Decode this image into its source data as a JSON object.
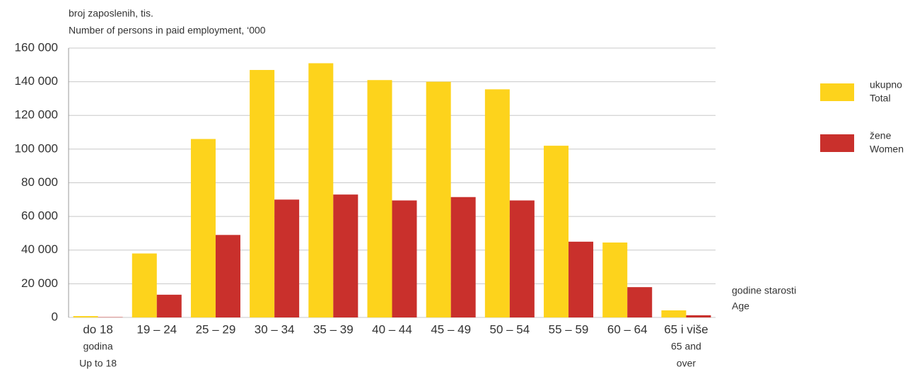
{
  "chart_data": {
    "type": "bar",
    "ylabel": [
      "broj zaposlenih, tis.",
      "Number of persons in paid employment, ‘000"
    ],
    "xlabel": [
      "godine starosti",
      "Age"
    ],
    "categories": [
      [
        "do 18",
        "godina",
        "Up to 18"
      ],
      [
        "19 – 24"
      ],
      [
        "25 – 29"
      ],
      [
        "30 – 34"
      ],
      [
        "35 – 39"
      ],
      [
        "40 – 44"
      ],
      [
        "45 – 49"
      ],
      [
        "50 – 54"
      ],
      [
        "55 – 59"
      ],
      [
        "60 – 64"
      ],
      [
        "65 i više",
        "65 and",
        "over"
      ]
    ],
    "series": [
      {
        "name": "ukupno",
        "name_en": "Total",
        "color": "#fdd31c",
        "values": [
          800,
          38000,
          106000,
          147000,
          151000,
          141000,
          140000,
          135500,
          102000,
          44500,
          4200
        ]
      },
      {
        "name": "žene",
        "name_en": "Women",
        "color": "#c9302c",
        "values": [
          200,
          13500,
          49000,
          70000,
          73000,
          69500,
          71500,
          69500,
          45000,
          18000,
          1300
        ]
      }
    ],
    "ylim": [
      0,
      160000
    ],
    "yticks": [
      0,
      {
        "value": 20000,
        "label": "20 000"
      },
      {
        "value": 40000,
        "label": "40 000"
      },
      {
        "value": 60000,
        "label": "60 000"
      },
      {
        "value": 80000,
        "label": "80 000"
      },
      {
        "value": 100000,
        "label": "100 000"
      },
      {
        "value": 120000,
        "label": "120 000"
      },
      {
        "value": 140000,
        "label": "140 000"
      },
      {
        "value": 160000,
        "label": "160 000"
      }
    ],
    "grid": true
  }
}
